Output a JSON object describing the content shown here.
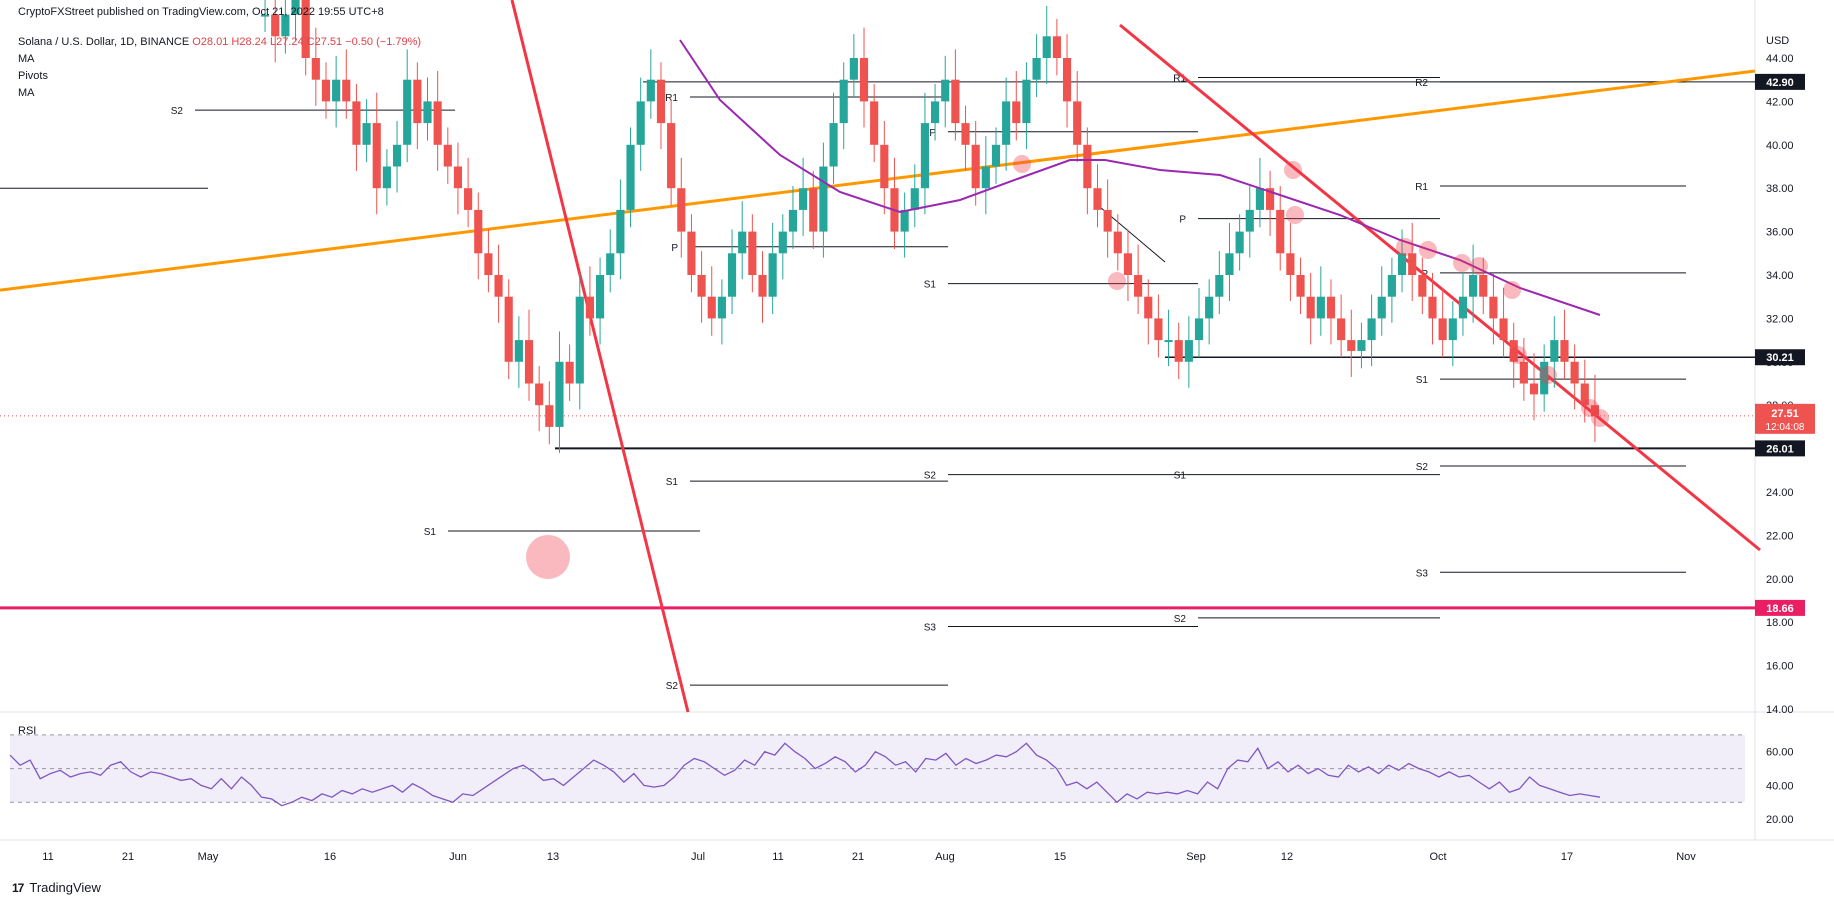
{
  "header": {
    "publisher": "CryptoFXStreet published on TradingView.com, Oct 21, 2022 19:55 UTC+8"
  },
  "legend": {
    "symbol": "Solana / U.S. Dollar, 1D, BINANCE",
    "open": "O28.01",
    "high": "H28.24",
    "low": "L27.24",
    "close": "C27.51",
    "change": "−0.50 (−1.79%)",
    "ind1": "MA",
    "ind2": "Pivots",
    "ind3": "MA"
  },
  "footer": {
    "brand": "TradingView"
  },
  "chart_data": {
    "type": "candlestick",
    "title": "Solana / U.S. Dollar, 1D, BINANCE",
    "currency": "USD",
    "y_ticks": [
      "44.00",
      "42.00",
      "40.00",
      "38.00",
      "36.00",
      "34.00",
      "32.00",
      "30.00",
      "28.00",
      "26.00",
      "24.00",
      "22.00",
      "20.00",
      "18.00",
      "16.00",
      "14.00"
    ],
    "x_ticks": [
      "11",
      "21",
      "May",
      "16",
      "Jun",
      "13",
      "Jul",
      "11",
      "21",
      "Aug",
      "15",
      "Sep",
      "12",
      "Oct",
      "17",
      "Nov"
    ],
    "price_labels": [
      {
        "text": "42.90",
        "value": 42.9,
        "color": "#131722"
      },
      {
        "text": "30.21",
        "value": 30.21,
        "color": "#131722"
      },
      {
        "text": "26.01",
        "value": 26.01,
        "color": "#131722"
      },
      {
        "text": "18.66",
        "value": 18.66,
        "color": "#e91e63"
      }
    ],
    "last_price": {
      "text": "27.51",
      "value": 27.51,
      "countdown": "12:04:08",
      "color": "#ef5350"
    },
    "pivot_labels": [
      "R1",
      "R2",
      "P",
      "S1",
      "S2",
      "S3"
    ],
    "rsi": {
      "label": "RSI",
      "ticks": [
        "60.00",
        "40.00",
        "20.00"
      ],
      "upper": 70,
      "middle": 50,
      "lower": 30,
      "values": [
        58,
        52,
        55,
        44,
        47,
        49,
        45,
        47,
        48,
        46,
        52,
        54,
        48,
        45,
        48,
        47,
        45,
        43,
        44,
        40,
        38,
        44,
        38,
        45,
        40,
        33,
        32,
        28,
        30,
        33,
        31,
        35,
        33,
        37,
        35,
        38,
        36,
        38,
        40,
        36,
        41,
        38,
        34,
        32,
        30,
        35,
        34,
        38,
        42,
        46,
        50,
        52,
        48,
        43,
        44,
        40,
        45,
        50,
        55,
        52,
        48,
        42,
        47,
        40,
        39,
        40,
        45,
        52,
        56,
        54,
        50,
        46,
        49,
        55,
        52,
        60,
        58,
        65,
        60,
        56,
        50,
        53,
        57,
        54,
        48,
        52,
        60,
        57,
        52,
        54,
        48,
        56,
        55,
        59,
        52,
        56,
        53,
        55,
        58,
        57,
        60,
        65,
        58,
        55,
        50,
        40,
        42,
        38,
        42,
        36,
        30,
        35,
        32,
        36,
        35,
        36,
        35,
        37,
        35,
        42,
        38,
        50,
        55,
        54,
        62,
        50,
        54,
        48,
        52,
        47,
        50,
        46,
        45,
        52,
        48,
        51,
        47,
        52,
        49,
        53,
        50,
        48,
        45,
        48,
        45,
        46,
        42,
        38,
        42,
        36,
        38,
        45,
        40,
        38,
        36,
        34,
        35,
        34,
        33
      ]
    }
  },
  "colors": {
    "up": "#26a69a",
    "down": "#ef5350",
    "ma": "#9c27b0",
    "trend_orange": "#ff9800",
    "trend_red": "#f23645",
    "support_magenta": "#e91e63"
  }
}
